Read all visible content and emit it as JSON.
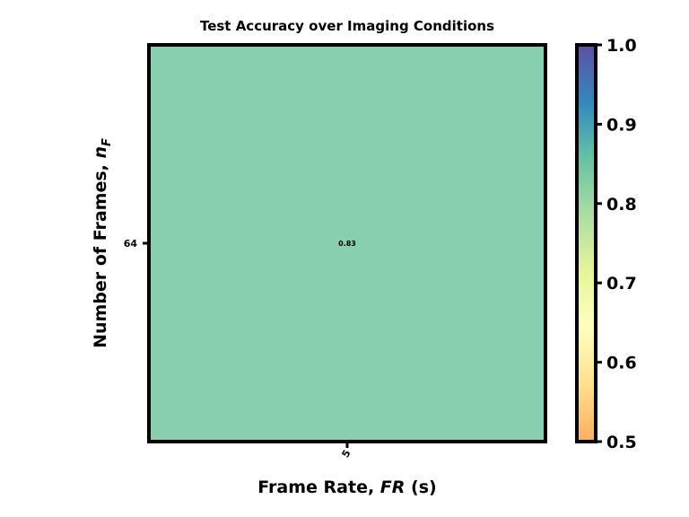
{
  "chart_data": {
    "type": "heatmap",
    "title": "Test Accuracy over Imaging Conditions",
    "xlabel": "Frame Rate, FR (s)",
    "ylabel": "Number of Frames, n_F",
    "x_categories": [
      "5"
    ],
    "y_categories": [
      "64"
    ],
    "values": [
      [
        0.83
      ]
    ],
    "cell_labels": [
      [
        "0.83"
      ]
    ],
    "colorbar": {
      "range": [
        0.5,
        1.0
      ],
      "ticks": [
        "0.5",
        "0.6",
        "0.7",
        "0.8",
        "0.9",
        "1.0"
      ],
      "colors": [
        "#fdae61",
        "#fee08b",
        "#ffffbf",
        "#e6f598",
        "#abdda4",
        "#66c2a5",
        "#3288bd",
        "#5e4fa2"
      ]
    },
    "cell_color": "#88cfae"
  }
}
